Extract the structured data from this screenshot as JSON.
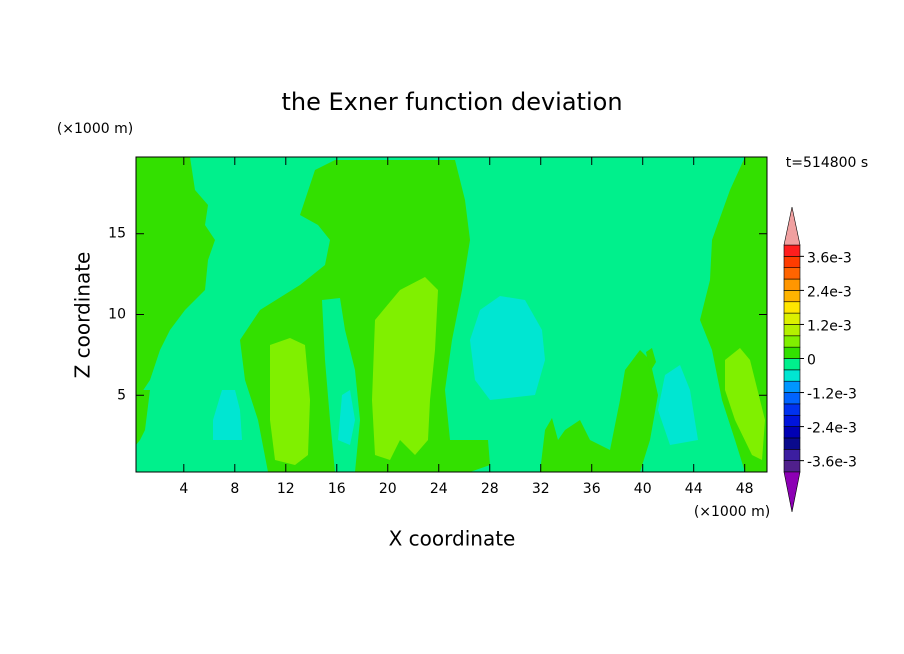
{
  "chart_data": {
    "type": "contour",
    "title": "the Exner function deviation",
    "xlabel": "X coordinate",
    "ylabel": "Z coordinate",
    "x_unit": "(×1000 m)",
    "y_unit": "(×1000 m)",
    "time_label": "t=514800 s",
    "xlim": [
      0.25,
      49.75
    ],
    "xticks": [
      4,
      8,
      12,
      16,
      20,
      24,
      28,
      32,
      36,
      40,
      44,
      48
    ],
    "ylim": [
      0.25,
      19.75
    ],
    "yticks": [
      5,
      10,
      15
    ],
    "colorbar": {
      "levels": [
        -0.004,
        -0.0036,
        -0.0032,
        -0.0028,
        -0.0024,
        -0.002,
        -0.0016,
        -0.0012,
        -0.0008,
        -0.0004,
        0,
        0.0004,
        0.0008,
        0.0012,
        0.0016,
        0.002,
        0.0024,
        0.0028,
        0.0032,
        0.0036,
        0.004
      ],
      "colors": [
        "#50208c",
        "#3c1ea0",
        "#0a0a8c",
        "#0000b4",
        "#0014dc",
        "#0032f0",
        "#0064ff",
        "#0096ff",
        "#00e6d2",
        "#00f08c",
        "#33e000",
        "#80f000",
        "#b4f000",
        "#dcf000",
        "#ffe600",
        "#ffb400",
        "#ff9600",
        "#ff6400",
        "#ff3c00",
        "#ff1e1e"
      ],
      "over_color": "#f0a0a0",
      "under_color": "#8c00b4",
      "ticks": [
        {
          "value": 0.0036,
          "label": "3.6e-3"
        },
        {
          "value": 0.0024,
          "label": "2.4e-3"
        },
        {
          "value": 0.0012,
          "label": "1.2e-3"
        },
        0,
        {
          "value": -0.0012,
          "label": "-1.2e-3"
        },
        {
          "value": -0.0024,
          "label": "-2.4e-3"
        },
        {
          "value": -0.0036,
          "label": "-3.6e-3"
        }
      ]
    }
  }
}
